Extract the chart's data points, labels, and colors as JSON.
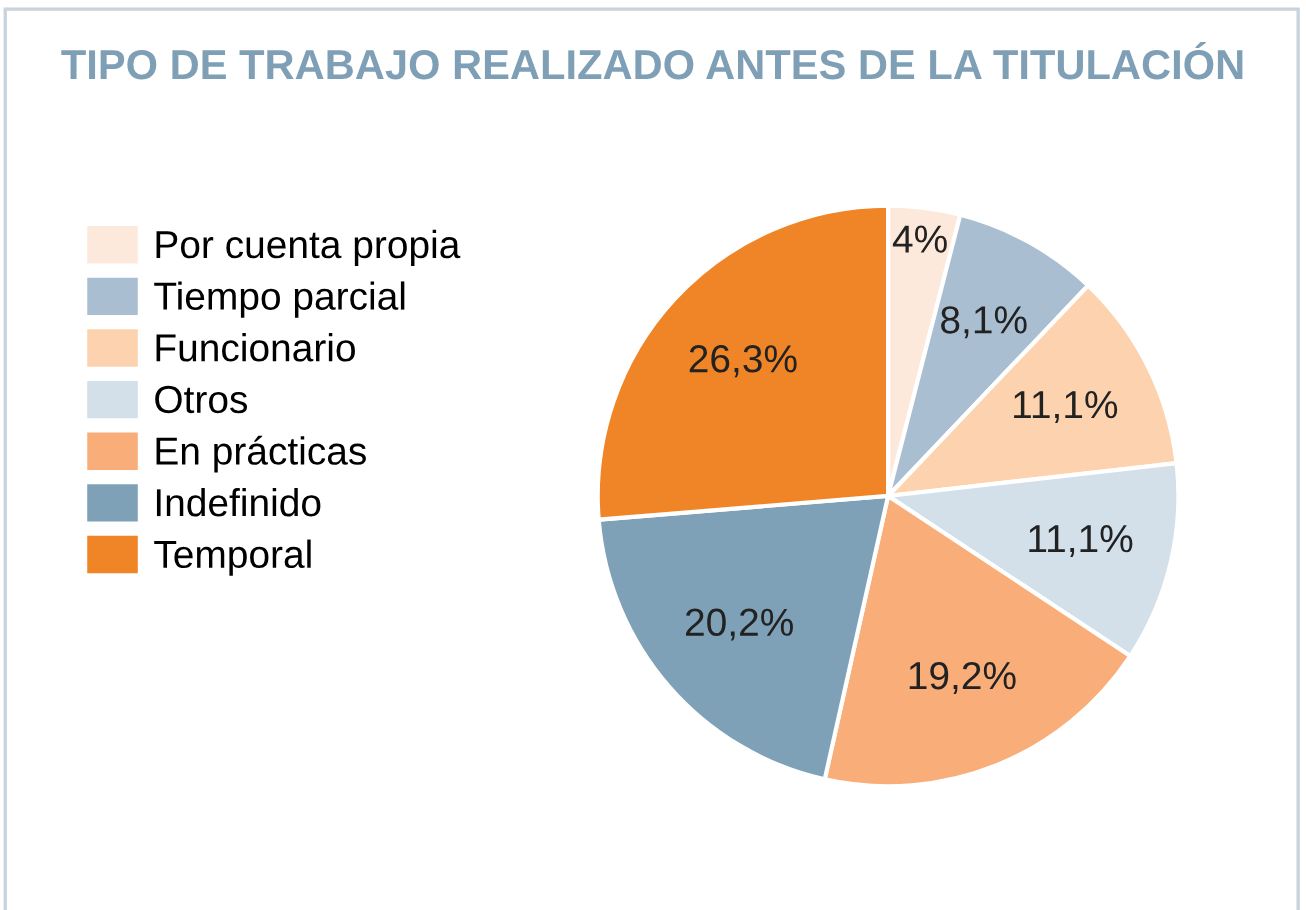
{
  "chart_data": {
    "type": "pie",
    "title": "TIPO DE TRABAJO REALIZADO ANTES DE LA TITULACIÓN",
    "categories": [
      "Por cuenta propia",
      "Tiempo parcial",
      "Funcionario",
      "Otros",
      "En prácticas",
      "Indefinido",
      "Temporal"
    ],
    "values": [
      4,
      8.1,
      11.1,
      11.1,
      19.2,
      20.2,
      26.3
    ],
    "value_labels": [
      "4%",
      "8,1%",
      "11,1%",
      "11,1%",
      "19,2%",
      "20,2%",
      "26,3%"
    ],
    "colors": [
      "#fde9dc",
      "#a9bfd1",
      "#fcd3ae",
      "#d3dfe9",
      "#f9ad78",
      "#7fa1b8",
      "#f08528"
    ],
    "legend": "left"
  }
}
